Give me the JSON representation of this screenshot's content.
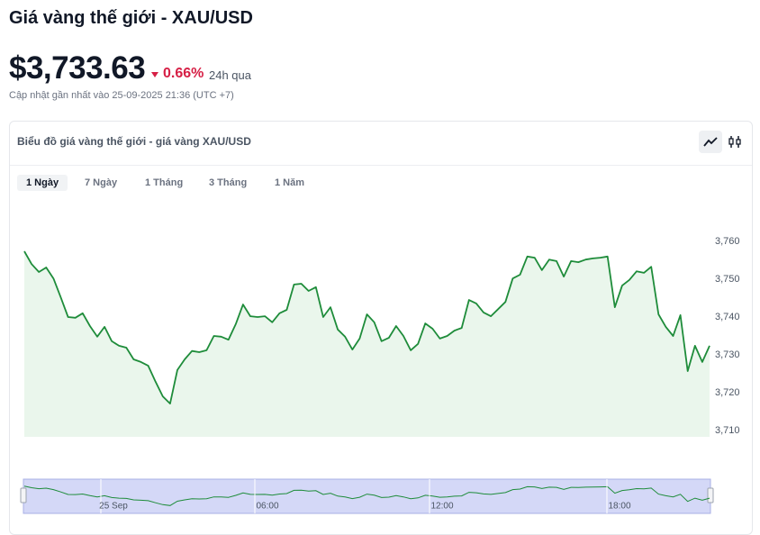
{
  "header": {
    "title": "Giá vàng thế giới - XAU/USD",
    "price": "$3,733.63",
    "change": "0.66%",
    "period": "24h qua",
    "updated": "Cập nhật gần nhất vào 25-09-2025 21:36 (UTC +7)"
  },
  "card": {
    "title": "Biểu đồ giá vàng thế giới - giá vàng XAU/USD",
    "tabs": [
      "1 Ngày",
      "7 Ngày",
      "1 Tháng",
      "3 Tháng",
      "1 Năm"
    ]
  },
  "chart_data": {
    "type": "line",
    "color": "#1e8c3a",
    "fill": "#eaf6ec",
    "values": [
      3757.4,
      3754.0,
      3751.9,
      3753.1,
      3750.2,
      3745.2,
      3740.0,
      3739.8,
      3741.0,
      3737.6,
      3734.8,
      3737.4,
      3733.6,
      3732.4,
      3731.9,
      3728.8,
      3728.1,
      3727.1,
      3722.9,
      3719.0,
      3717.1,
      3726.0,
      3728.8,
      3731.0,
      3730.7,
      3731.2,
      3735.0,
      3734.8,
      3734.0,
      3738.1,
      3743.3,
      3740.2,
      3740.0,
      3740.2,
      3738.6,
      3741.0,
      3741.9,
      3748.6,
      3748.8,
      3746.9,
      3747.9,
      3740.0,
      3742.6,
      3736.7,
      3734.8,
      3731.4,
      3734.3,
      3740.7,
      3738.6,
      3733.6,
      3734.5,
      3737.6,
      3735.0,
      3731.2,
      3732.9,
      3738.3,
      3736.9,
      3734.3,
      3735.0,
      3736.4,
      3737.1,
      3744.5,
      3743.6,
      3741.2,
      3740.2,
      3742.1,
      3744.0,
      3750.2,
      3751.2,
      3756.0,
      3755.7,
      3752.4,
      3755.2,
      3754.8,
      3750.7,
      3754.8,
      3754.5,
      3755.2,
      3755.5,
      3755.7,
      3756.0,
      3742.6,
      3748.3,
      3749.8,
      3752.1,
      3751.7,
      3753.3,
      3740.7,
      3737.4,
      3735.0,
      3740.5,
      3725.7,
      3732.4,
      3728.1,
      3732.4
    ],
    "ylim": [
      3708.3,
      3764.3
    ],
    "yticks": [
      {
        "value": 3710,
        "label": "3,710"
      },
      {
        "value": 3720,
        "label": "3,720"
      },
      {
        "value": 3730,
        "label": "3,730"
      },
      {
        "value": 3740,
        "label": "3,740"
      },
      {
        "value": 3750,
        "label": "3,750"
      },
      {
        "value": 3760,
        "label": "3,760"
      }
    ],
    "navigator_labels": [
      "25 Sep",
      "06:00",
      "12:00",
      "18:00"
    ]
  }
}
